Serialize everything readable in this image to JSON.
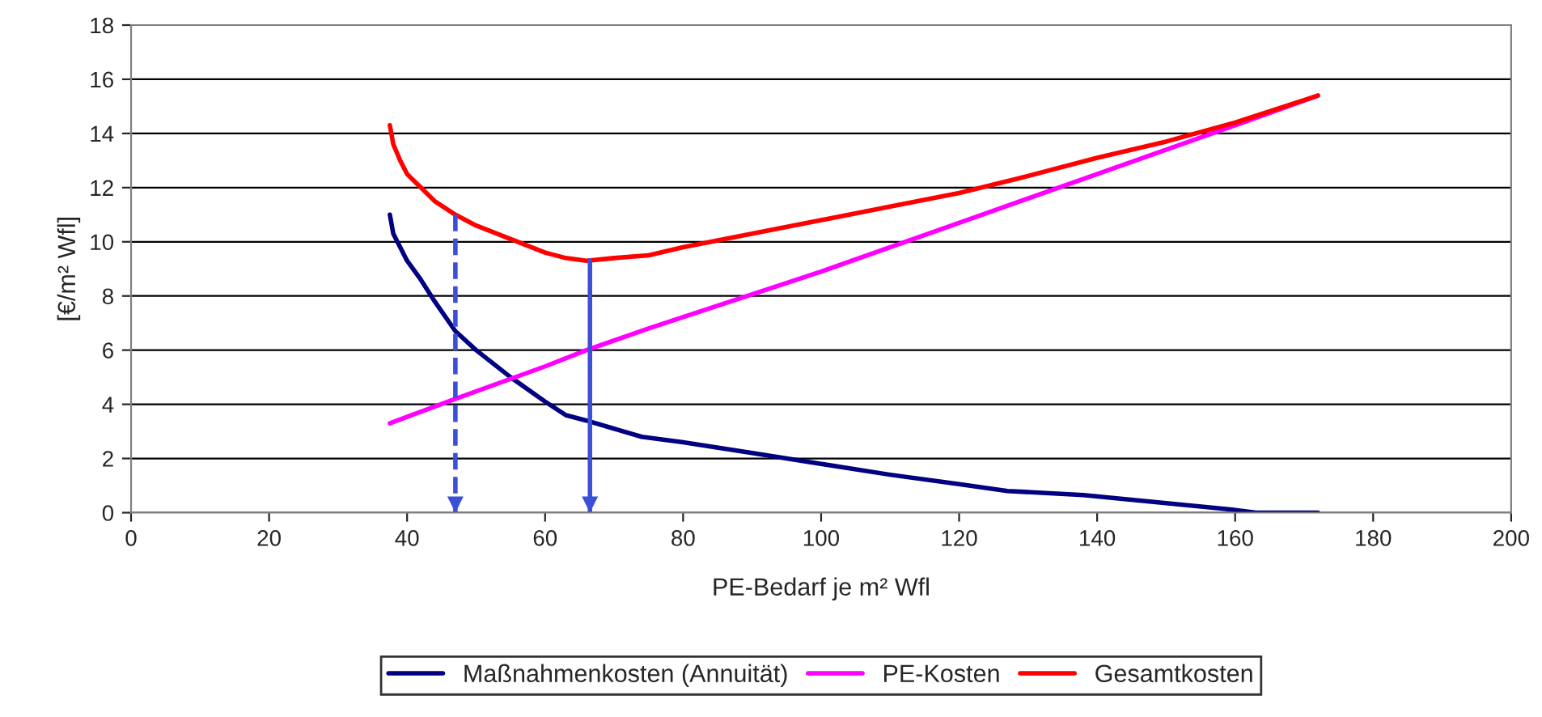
{
  "chart_data": {
    "type": "line",
    "xlabel": "PE-Bedarf je m² Wfl",
    "ylabel": "[€/m² Wfl]",
    "xlim": [
      0,
      200
    ],
    "xticks": [
      0,
      20,
      40,
      60,
      80,
      100,
      120,
      140,
      160,
      180,
      200
    ],
    "ylim": [
      0,
      18
    ],
    "yticks": [
      0,
      2,
      4,
      6,
      8,
      10,
      12,
      14,
      16,
      18
    ],
    "grid": "y",
    "legend": "bottom",
    "marker": "none",
    "line_style": "solid",
    "series": [
      {
        "name": "Maßnahmenkosten (Annuität)",
        "color": "#000080",
        "x": [
          37.5,
          38,
          40,
          42,
          44,
          47,
          50,
          55,
          60,
          63,
          66,
          70,
          74,
          80,
          90,
          100,
          110,
          120,
          127,
          138,
          150,
          160,
          163,
          172
        ],
        "values": [
          11.0,
          10.3,
          9.3,
          8.6,
          7.8,
          6.7,
          6.0,
          5.0,
          4.1,
          3.6,
          3.4,
          3.1,
          2.8,
          2.6,
          2.2,
          1.8,
          1.4,
          1.05,
          0.8,
          0.65,
          0.35,
          0.1,
          0.0,
          0.0
        ]
      },
      {
        "name": "PE-Kosten",
        "color": "#ff00ff",
        "x": [
          37.5,
          47,
          60,
          66,
          75,
          100,
          120,
          140,
          160,
          172
        ],
        "values": [
          3.3,
          4.2,
          5.4,
          6.0,
          6.8,
          8.9,
          10.7,
          12.5,
          14.3,
          15.4
        ]
      },
      {
        "name": "Gesamtkosten",
        "color": "#ff0000",
        "x": [
          37.5,
          38,
          39,
          40,
          42,
          44,
          47,
          50,
          55,
          60,
          63,
          66,
          70,
          75,
          80,
          90,
          100,
          110,
          120,
          128,
          140,
          150,
          160,
          172
        ],
        "values": [
          14.3,
          13.6,
          13.0,
          12.5,
          12.0,
          11.5,
          11.0,
          10.6,
          10.1,
          9.6,
          9.4,
          9.3,
          9.4,
          9.5,
          9.8,
          10.3,
          10.8,
          11.3,
          11.8,
          12.3,
          13.1,
          13.7,
          14.4,
          15.4
        ]
      }
    ],
    "ref_lines": [
      {
        "axis": "x",
        "value": 47,
        "line_style": "dashed",
        "color": "#3b4fd8"
      },
      {
        "axis": "x",
        "value": 66.5,
        "line_style": "solid",
        "color": "#3b4fd8"
      }
    ]
  }
}
